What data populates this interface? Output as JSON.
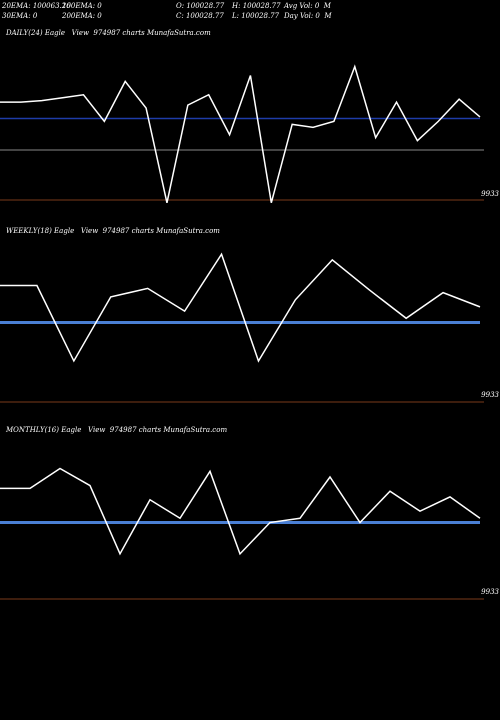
{
  "header": {
    "line1_col1": "20EMA: 100063.26",
    "line1_col2": "100EMA: 0",
    "line1_col3": "O: 100028.77",
    "line1_col4": "H: 100028.77",
    "line1_col5": "Avg Vol: 0  M",
    "line2_col1": "30EMA: 0",
    "line2_col2": "200EMA: 0",
    "line2_col3": "C: 100028.77",
    "line2_col4": "L: 100028.77",
    "line2_col5": "Day Vol: 0  M"
  },
  "colors": {
    "background": "#000000",
    "price_line": "#ffffff",
    "ema_line_daily": "#1e3ca8",
    "ema_line": "#4a7fd4",
    "baseline": "#7a3a1a",
    "midline": "#888888"
  },
  "panels": [
    {
      "title": "DAILY(24) Eagle   View  974987 charts MunafaSutra.com",
      "tick_label": "9933"
    },
    {
      "title": "WEEKLY(18) Eagle   View  974987 charts MunafaSutra.com",
      "tick_label": "9933"
    },
    {
      "title": "MONTHLY(16) Eagle   View  974987 charts MunafaSutra.com",
      "tick_label": "9933"
    }
  ],
  "chart_data": [
    {
      "type": "line",
      "title": "DAILY(24) Eagle   View  974987 charts MunafaSutra.com",
      "series": [
        {
          "values": [
            68,
            68,
            69,
            71,
            73,
            55,
            82,
            64,
            0,
            66,
            73,
            46,
            86,
            0,
            53,
            51,
            55,
            92,
            44,
            68,
            42,
            55,
            70,
            58
          ]
        },
        {
          "values": [
            57,
            57,
            57,
            57,
            57,
            57,
            57,
            57,
            57,
            57,
            57,
            57,
            57,
            57,
            57,
            57,
            57,
            57,
            57,
            57,
            57,
            57,
            57,
            57
          ]
        }
      ],
      "ylim": [
        -15,
        110
      ]
    },
    {
      "type": "line",
      "title": "WEEKLY(18) Eagle   View  974987 charts MunafaSutra.com",
      "series": [
        {
          "values": [
            78,
            78,
            25,
            70,
            76,
            60,
            100,
            25,
            68,
            96,
            75,
            55,
            73,
            63
          ]
        },
        {
          "values": [
            52,
            52,
            52,
            52,
            52,
            52,
            52,
            52,
            52,
            52,
            52,
            52,
            52,
            52
          ]
        }
      ],
      "ylim": [
        -20,
        110
      ]
    },
    {
      "type": "line",
      "title": "MONTHLY(16) Eagle   View  974987 charts MunafaSutra.com",
      "series": [
        {
          "values": [
            76,
            76,
            90,
            78,
            30,
            68,
            55,
            88,
            30,
            52,
            55,
            84,
            52,
            74,
            60,
            70,
            55
          ]
        },
        {
          "values": [
            52,
            52,
            52,
            52,
            52,
            52,
            52,
            52,
            52,
            52,
            52,
            52,
            52,
            52,
            52,
            52,
            52
          ]
        }
      ],
      "ylim": [
        -20,
        110
      ]
    }
  ]
}
